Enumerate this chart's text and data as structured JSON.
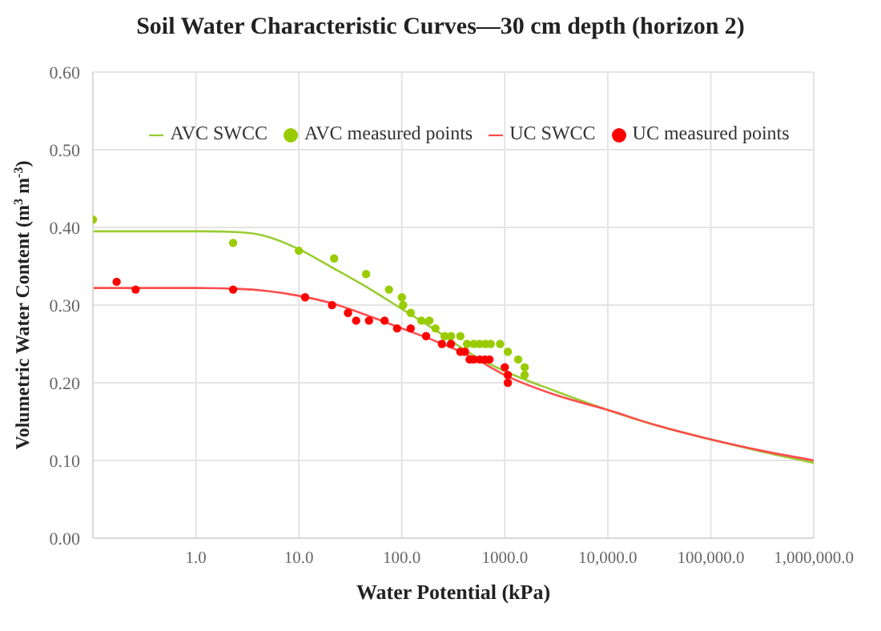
{
  "chart_data": {
    "type": "line",
    "title": "Soil Water Characteristic Curves—30 cm depth (horizon 2)",
    "xlabel": "Water Potential (kPa)",
    "ylabel": "Volumetric Water Content (m$^{3}$ m$^{-3}$)",
    "log": "x",
    "grid": true,
    "legend": "top",
    "xlim": [
      0.1,
      1000000
    ],
    "ylim": [
      0,
      0.6
    ],
    "xticks": [
      {
        "value": 1,
        "label": "1.0"
      },
      {
        "value": 10,
        "label": "10.0"
      },
      {
        "value": 100,
        "label": "100.0"
      },
      {
        "value": 1000,
        "label": "1000.0"
      },
      {
        "value": 10000,
        "label": "10,000.0"
      },
      {
        "value": 100000,
        "label": "100,000.0"
      },
      {
        "value": 1000000,
        "label": "1,000,000.0"
      }
    ],
    "yticks": [
      {
        "value": 0,
        "label": "0.00"
      },
      {
        "value": 0.1,
        "label": "0.10"
      },
      {
        "value": 0.2,
        "label": "0.20"
      },
      {
        "value": 0.3,
        "label": "0.30"
      },
      {
        "value": 0.4,
        "label": "0.40"
      },
      {
        "value": 0.5,
        "label": "0.50"
      },
      {
        "value": 0.6,
        "label": "0.60"
      }
    ],
    "series": [
      {
        "name": "AVC SWCC",
        "marker": "none",
        "color": "#99cc33",
        "x": [
          0.1,
          1,
          2.5,
          5,
          10,
          20,
          50,
          100,
          200,
          500,
          1000,
          3000,
          10000,
          30000,
          100000,
          300000,
          1000000
        ],
        "values": [
          0.395,
          0.395,
          0.394,
          0.388,
          0.372,
          0.35,
          0.32,
          0.295,
          0.27,
          0.235,
          0.215,
          0.19,
          0.165,
          0.145,
          0.127,
          0.112,
          0.097
        ]
      },
      {
        "name": "UC SWCC",
        "marker": "none",
        "color": "#ff4d4d",
        "x": [
          0.1,
          1,
          2.5,
          5,
          10,
          20,
          50,
          100,
          200,
          500,
          1000,
          3000,
          10000,
          30000,
          100000,
          300000,
          1000000
        ],
        "values": [
          0.322,
          0.322,
          0.321,
          0.318,
          0.312,
          0.303,
          0.285,
          0.27,
          0.255,
          0.232,
          0.21,
          0.185,
          0.165,
          0.145,
          0.127,
          0.113,
          0.1
        ]
      },
      {
        "name": "AVC measured points",
        "type": "scatter",
        "marker": "circle",
        "color": "#99cc00",
        "x": [
          0.1,
          2.3,
          10,
          22,
          45,
          75,
          100,
          103,
          122,
          155,
          185,
          212,
          260,
          300,
          370,
          430,
          500,
          570,
          650,
          730,
          900,
          1070,
          1350,
          1560,
          1560
        ],
        "values": [
          0.41,
          0.38,
          0.37,
          0.36,
          0.34,
          0.32,
          0.31,
          0.3,
          0.29,
          0.28,
          0.28,
          0.27,
          0.26,
          0.26,
          0.26,
          0.25,
          0.25,
          0.25,
          0.25,
          0.25,
          0.25,
          0.24,
          0.23,
          0.22,
          0.21
        ]
      },
      {
        "name": "UC measured points",
        "type": "scatter",
        "marker": "circle",
        "color": "#ff0000",
        "x": [
          0.17,
          0.26,
          2.3,
          11.5,
          21,
          30,
          36,
          48,
          68,
          90,
          122,
          172,
          245,
          300,
          370,
          410,
          455,
          500,
          570,
          640,
          710,
          1000,
          1070,
          1070
        ],
        "values": [
          0.33,
          0.32,
          0.32,
          0.31,
          0.3,
          0.29,
          0.28,
          0.28,
          0.28,
          0.27,
          0.27,
          0.26,
          0.25,
          0.25,
          0.24,
          0.24,
          0.23,
          0.23,
          0.23,
          0.23,
          0.23,
          0.22,
          0.21,
          0.2
        ]
      }
    ]
  }
}
